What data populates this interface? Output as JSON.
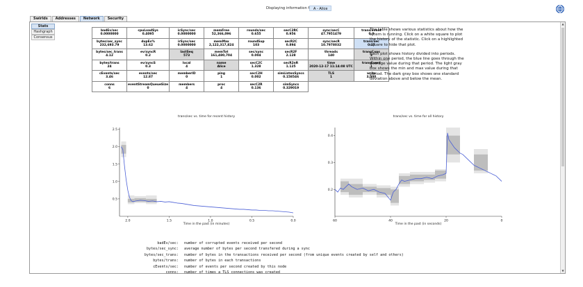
{
  "header": {
    "display_label": "Displaying information for:",
    "member": "A - Alice",
    "logo_icon": "globe-logo-icon"
  },
  "tabs": [
    "Swirlds",
    "Addresses",
    "Network",
    "Security"
  ],
  "active_tab": "Network",
  "subtabs": [
    "Stats",
    "Hashgraph",
    "Consensus"
  ],
  "active_subtab": "Stats",
  "stats_rows": [
    [
      {
        "name": "badEv/sec",
        "value": "0.0000000"
      },
      {
        "name": "cpuLoadSys",
        "value": "0.4095"
      },
      {
        "name": "icSync/sec",
        "value": "0.0000000"
      },
      {
        "name": "memFree",
        "value": "52,366,096"
      },
      {
        "name": "rounds/sec",
        "value": "0.655"
      },
      {
        "name": "secC2RC",
        "value": "0.956"
      },
      {
        "name": "sync/secC",
        "value": "47.7951479"
      },
      {
        "name": "trans/event",
        "value": "0.0"
      }
    ],
    [
      {
        "name": "bytes/sec_sync",
        "value": "232,693.79"
      },
      {
        "name": "dupEv%",
        "value": "13.62"
      },
      {
        "name": "irSync/sec",
        "value": "0.0000000"
      },
      {
        "name": "memMax",
        "value": "2,122,317,824"
      },
      {
        "name": "roundSup",
        "value": "103"
      },
      {
        "name": "secR2C",
        "value": "0.894"
      },
      {
        "name": "sync/secR",
        "value": "10.7978032"
      },
      {
        "name": "trans/sec",
        "value": "0.17",
        "state": "selected"
      }
    ],
    [
      {
        "name": "bytes/sec_trans",
        "value": "4.12"
      },
      {
        "name": "ev/syncR",
        "value": "0.2"
      },
      {
        "name": "lastSeq",
        "value": "573",
        "state": "gray"
      },
      {
        "name": "memTot",
        "value": "161,480,704"
      },
      {
        "name": "sec/sync",
        "value": "0.004"
      },
      {
        "name": "secR2F",
        "value": "2.128"
      },
      {
        "name": "threads",
        "value": "140"
      },
      {
        "name": "transCons",
        "value": "3",
        "state": "gray"
      }
    ],
    [
      {
        "name": "bytes/trans",
        "value": "24"
      },
      {
        "name": "ev/syncS",
        "value": "0.3"
      },
      {
        "name": "local",
        "value": "4"
      },
      {
        "name": "name",
        "value": "Alice",
        "state": "gray"
      },
      {
        "name": "secC2C",
        "value": "1.328"
      },
      {
        "name": "secR2nR",
        "value": "1.125"
      },
      {
        "name": "time",
        "value": "2020-12-17 11:14:08 UTC",
        "state": "gray"
      },
      {
        "name": "transEvent",
        "value": "1",
        "state": "gray"
      }
    ],
    [
      {
        "name": "cEvents/sec",
        "value": "3.46"
      },
      {
        "name": "events/sec",
        "value": "12.87"
      },
      {
        "name": "memberID",
        "value": "0"
      },
      {
        "name": "ping",
        "value": "1"
      },
      {
        "name": "secC2H",
        "value": "0.002"
      },
      {
        "name": "simListenSyncs",
        "value": "0.158546"
      },
      {
        "name": "TLS",
        "value": "1",
        "state": "gray"
      },
      {
        "name": "write",
        "value": "3,000"
      }
    ],
    [
      {
        "name": "conns",
        "value": "6"
      },
      {
        "name": "eventStreamQueueSize",
        "value": "0"
      },
      {
        "name": "members",
        "value": "4"
      },
      {
        "name": "proc",
        "value": "4"
      },
      {
        "name": "secC2R",
        "value": "0.136"
      },
      {
        "name": "simSyncs",
        "value": "0.329019"
      }
    ]
  ],
  "description": {
    "p1": "The table shows various statistics about how the sytem is running. Click on a white square to plot the history of the statistic. Click on a highlighted square to hide that plot.",
    "p2": "Each plot shows history divided into periods. Within one period, the blue line goes through the average value during that period. The light gray box shows the min and max value during that period. The dark gray box shows one standard deviation above and below the mean."
  },
  "chart_data": [
    {
      "type": "line",
      "title": "trans/sec vs. time for recent history",
      "xlabel": "Time in the past (in minutes)",
      "ylabel": "",
      "xlim": [
        2.1,
        0.0
      ],
      "ylim": [
        0,
        2.55
      ],
      "x_ticks": [
        "2.0",
        "1.5",
        "1.0",
        "0.5",
        "0.0"
      ],
      "y_ticks": [
        "0.5",
        "1.0",
        "1.5",
        "2.0",
        "2.5"
      ],
      "series": [
        {
          "color": "#4a5fd6",
          "x": [
            2.08,
            2.06,
            2.04,
            2.02,
            2.0,
            1.98,
            1.96,
            1.94,
            1.9,
            1.85,
            1.8,
            1.75,
            1.7,
            1.65,
            1.6,
            1.55,
            1.5,
            1.45,
            1.4,
            1.35,
            1.3,
            1.25,
            1.2,
            1.15,
            1.1,
            1.05,
            1.0,
            0.95,
            0.9,
            0.85,
            0.8,
            0.75,
            0.7,
            0.65,
            0.6,
            0.55,
            0.5,
            0.45,
            0.4,
            0.35,
            0.3,
            0.25,
            0.2,
            0.15,
            0.1,
            0.05,
            0.0
          ],
          "values": [
            2.0,
            1.92,
            1.45,
            1.05,
            0.75,
            0.55,
            0.45,
            0.42,
            0.44,
            0.46,
            0.45,
            0.43,
            0.44,
            0.42,
            0.43,
            0.41,
            0.42,
            0.4,
            0.38,
            0.37,
            0.35,
            0.33,
            0.31,
            0.3,
            0.29,
            0.28,
            0.27,
            0.26,
            0.25,
            0.24,
            0.23,
            0.22,
            0.21,
            0.2,
            0.2,
            0.19,
            0.18,
            0.18,
            0.17,
            0.17,
            0.16,
            0.16,
            0.15,
            0.14,
            0.13,
            0.12,
            0.1
          ]
        }
      ],
      "boxes": [
        {
          "x0": 2.08,
          "x1": 2.02,
          "min": 1.7,
          "max": 2.15,
          "sd_low": 1.8,
          "sd_high": 2.05
        },
        {
          "x0": 2.0,
          "x1": 1.92,
          "min": 0.35,
          "max": 0.6,
          "sd_low": 0.4,
          "sd_high": 0.5
        },
        {
          "x0": 1.92,
          "x1": 1.78,
          "min": 0.38,
          "max": 0.58,
          "sd_low": 0.42,
          "sd_high": 0.52
        },
        {
          "x0": 1.78,
          "x1": 1.65,
          "min": 0.35,
          "max": 0.6,
          "sd_low": 0.4,
          "sd_high": 0.5
        }
      ]
    },
    {
      "type": "line",
      "title": "trans/sec vs. time for all history",
      "xlabel": "Time in the past (in seconds)",
      "ylabel": "",
      "xlim": [
        60,
        0
      ],
      "ylim": [
        0.1,
        0.43
      ],
      "x_ticks": [
        "60",
        "40",
        "20",
        "0"
      ],
      "y_ticks": [
        "0.2",
        "0.3",
        "0.4"
      ],
      "series": [
        {
          "color": "#4a5fd6",
          "x": [
            60,
            59,
            58,
            57,
            56,
            55,
            54,
            52,
            50,
            48,
            46,
            44,
            42,
            40,
            39,
            38,
            37,
            36,
            35,
            33,
            31,
            29,
            27,
            25,
            23,
            21,
            20,
            19.5,
            19,
            18,
            17,
            16,
            15,
            14,
            13,
            12,
            11,
            10,
            9,
            8,
            7,
            6,
            5,
            4,
            3,
            2,
            1,
            0
          ],
          "values": [
            0.2,
            0.19,
            0.205,
            0.2,
            0.21,
            0.22,
            0.21,
            0.2,
            0.205,
            0.195,
            0.2,
            0.19,
            0.185,
            0.16,
            0.19,
            0.2,
            0.22,
            0.235,
            0.23,
            0.235,
            0.24,
            0.24,
            0.245,
            0.24,
            0.25,
            0.255,
            0.26,
            0.41,
            0.385,
            0.37,
            0.355,
            0.345,
            0.335,
            0.33,
            0.32,
            0.31,
            0.3,
            0.29,
            0.285,
            0.28,
            0.275,
            0.27,
            0.265,
            0.26,
            0.255,
            0.25,
            0.24,
            0.23
          ]
        }
      ],
      "boxes": [
        {
          "x0": 58,
          "x1": 55,
          "min": 0.18,
          "max": 0.24,
          "sd_low": 0.19,
          "sd_high": 0.23
        },
        {
          "x0": 55,
          "x1": 50,
          "min": 0.17,
          "max": 0.24,
          "sd_low": 0.18,
          "sd_high": 0.22
        },
        {
          "x0": 50,
          "x1": 45,
          "min": 0.18,
          "max": 0.22,
          "sd_low": 0.19,
          "sd_high": 0.21
        },
        {
          "x0": 45,
          "x1": 40,
          "min": 0.17,
          "max": 0.215,
          "sd_low": 0.18,
          "sd_high": 0.205
        },
        {
          "x0": 40,
          "x1": 37,
          "min": 0.14,
          "max": 0.21,
          "sd_low": 0.15,
          "sd_high": 0.2
        },
        {
          "x0": 37,
          "x1": 33,
          "min": 0.21,
          "max": 0.26,
          "sd_low": 0.22,
          "sd_high": 0.25
        },
        {
          "x0": 33,
          "x1": 28,
          "min": 0.22,
          "max": 0.265,
          "sd_low": 0.23,
          "sd_high": 0.255
        },
        {
          "x0": 28,
          "x1": 24,
          "min": 0.225,
          "max": 0.265,
          "sd_low": 0.235,
          "sd_high": 0.255
        },
        {
          "x0": 24,
          "x1": 20,
          "min": 0.23,
          "max": 0.275,
          "sd_low": 0.24,
          "sd_high": 0.27
        },
        {
          "x0": 20,
          "x1": 15,
          "min": 0.3,
          "max": 0.43,
          "sd_low": 0.33,
          "sd_high": 0.4
        },
        {
          "x0": 10,
          "x1": 5,
          "min": 0.26,
          "max": 0.35,
          "sd_low": 0.27,
          "sd_high": 0.33
        }
      ]
    }
  ],
  "glossary": [
    {
      "key": "badEv/sec",
      "text": "number of corrupted events received per second"
    },
    {
      "key": "bytes/sec_sync",
      "text": "average number of bytes per second transfered during a sync"
    },
    {
      "key": "bytes/sec_trans",
      "text": "number of bytes in the transactions received per second (from unique events created by self and others)"
    },
    {
      "key": "bytes/trans",
      "text": "number of bytes in each transactions"
    },
    {
      "key": "cEvents/sec",
      "text": "number of events per second created by this node"
    },
    {
      "key": "conns",
      "text": "number of times a TLS connections was created"
    }
  ]
}
